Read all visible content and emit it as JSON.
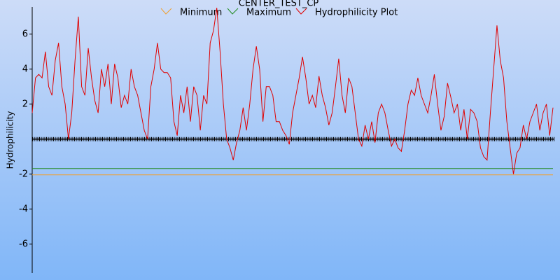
{
  "chart_data": {
    "type": "line",
    "title": "CENTER_TEST_CP",
    "y_label": "Hydrophilicity",
    "ylim": [
      -7.65,
      7.55
    ],
    "yticks": [
      -6,
      -4,
      -2,
      2,
      4,
      6
    ],
    "series": [
      {
        "name": "Minimum",
        "color": "#f0a030",
        "value": -2.04
      },
      {
        "name": "Maximum",
        "color": "#208a20",
        "value": -1.68
      },
      {
        "name": "Hydrophilicity Plot",
        "color": "#e00000",
        "values": [
          1.5,
          3.5,
          3.7,
          3.5,
          5,
          3,
          2.5,
          4.5,
          5.5,
          3,
          2,
          0,
          1.5,
          4.5,
          7,
          3,
          2.5,
          5.2,
          3.5,
          2.2,
          1.5,
          4,
          3,
          4.3,
          2,
          4.3,
          3.5,
          1.8,
          2.5,
          2,
          4,
          3,
          2.5,
          1.5,
          0.5,
          0,
          3,
          4,
          5.5,
          4,
          3.8,
          3.8,
          3.5,
          1,
          0.2,
          2.5,
          1.5,
          3,
          1,
          3,
          2.5,
          0.5,
          2.5,
          2,
          5.5,
          6.2,
          7.5,
          5,
          2,
          0,
          -0.5,
          -1.2,
          -0.2,
          0.5,
          1.8,
          0.5,
          2,
          4,
          5.3,
          4,
          1,
          3,
          3,
          2.5,
          1,
          1,
          0.5,
          0.2,
          -0.3,
          1.5,
          2.5,
          3.5,
          4.7,
          3.5,
          2,
          2.5,
          1.8,
          3.6,
          2.5,
          1.8,
          0.8,
          1.5,
          3,
          4.6,
          2.5,
          1.5,
          3.5,
          3,
          1.5,
          0,
          -0.4,
          0.8,
          0,
          1,
          -0.2,
          1.5,
          2,
          1.5,
          0.5,
          -0.4,
          0,
          -0.5,
          -0.7,
          0.5,
          2,
          2.8,
          2.5,
          3.5,
          2.5,
          2,
          1.5,
          2.5,
          3.7,
          2,
          0.5,
          1.3,
          3.2,
          2.4,
          1.5,
          2,
          0.5,
          1.7,
          0,
          1.7,
          1.5,
          1,
          -0.5,
          -1,
          -1.2,
          1.5,
          4,
          6.5,
          4.5,
          3.5,
          1,
          -0.5,
          -2,
          -0.8,
          -0.5,
          0.8,
          0,
          1,
          1.5,
          2,
          0.5,
          1.5,
          2,
          0.2,
          1.8
        ]
      }
    ]
  }
}
